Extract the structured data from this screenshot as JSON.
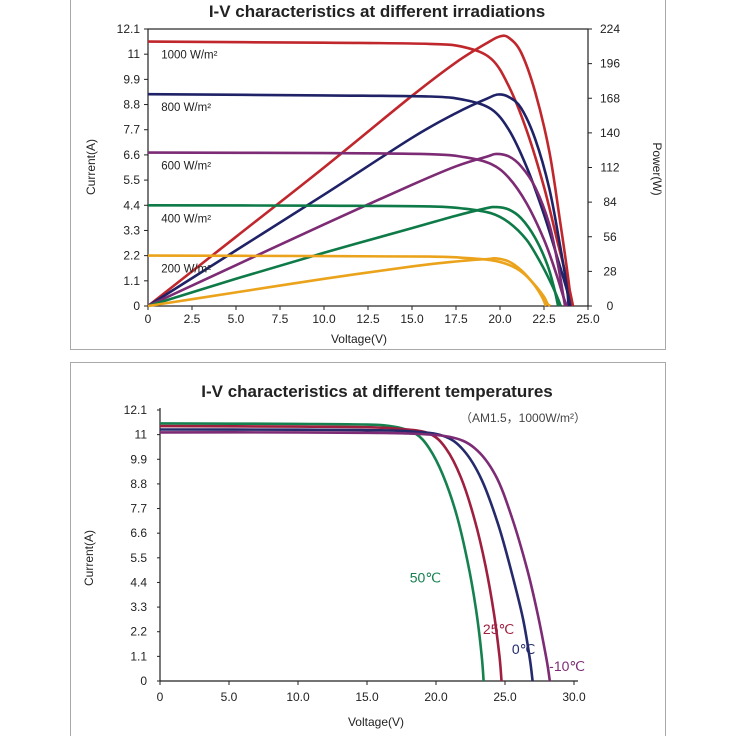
{
  "chart_data": [
    {
      "type": "line",
      "title": "I-V characteristics at different irradiations",
      "xlabel": "Voltage(V)",
      "ylabel": "Current(A)",
      "y2label": "Power(W)",
      "xlim": [
        0,
        25
      ],
      "ylim": [
        0,
        12.1
      ],
      "y2lim": [
        0,
        224
      ],
      "x_ticks": [
        "0",
        "2.5",
        "5.0",
        "7.5",
        "10.0",
        "12.5",
        "15.0",
        "17.5",
        "20.0",
        "22.5",
        "25.0"
      ],
      "y_ticks": [
        "0",
        "1.1",
        "2.2",
        "3.3",
        "4.4",
        "5.5",
        "6.6",
        "7.7",
        "8.8",
        "9.9",
        "11",
        "12.1"
      ],
      "y2_ticks": [
        "0",
        "28",
        "56",
        "84",
        "112",
        "140",
        "168",
        "196",
        "224"
      ],
      "grid": false,
      "series": [
        {
          "name": "1000 W/m²",
          "color": "#c0272d",
          "iv": [
            [
              0,
              11.55
            ],
            [
              10,
              11.5
            ],
            [
              16,
              11.45
            ],
            [
              18,
              11.3
            ],
            [
              19.5,
              10.8
            ],
            [
              20.5,
              9.6
            ],
            [
              21.5,
              7.7
            ],
            [
              22.5,
              5.2
            ],
            [
              23.3,
              2.7
            ],
            [
              23.9,
              0.9
            ],
            [
              24.15,
              0
            ]
          ],
          "pv": [
            [
              0,
              0
            ],
            [
              5,
              56
            ],
            [
              10,
              112
            ],
            [
              15,
              170
            ],
            [
              17.5,
              197
            ],
            [
              19.3,
              213
            ],
            [
              20,
              218
            ],
            [
              20.5,
              217
            ],
            [
              21.2,
              205
            ],
            [
              22,
              173
            ],
            [
              22.8,
              125
            ],
            [
              23.4,
              70
            ],
            [
              23.9,
              20
            ],
            [
              24.05,
              0
            ]
          ]
        },
        {
          "name": "800 W/m²",
          "color": "#1f2266",
          "iv": [
            [
              0,
              9.25
            ],
            [
              10,
              9.2
            ],
            [
              16,
              9.15
            ],
            [
              18,
              9.0
            ],
            [
              19.5,
              8.6
            ],
            [
              20.5,
              7.7
            ],
            [
              21.5,
              6.1
            ],
            [
              22.5,
              4.0
            ],
            [
              23.3,
              2.0
            ],
            [
              23.8,
              0.7
            ],
            [
              24.0,
              0
            ]
          ],
          "pv": [
            [
              0,
              0
            ],
            [
              5,
              45
            ],
            [
              10,
              90
            ],
            [
              15,
              136
            ],
            [
              17.5,
              156
            ],
            [
              19.3,
              168
            ],
            [
              19.9,
              171
            ],
            [
              20.5,
              169
            ],
            [
              21.2,
              160
            ],
            [
              22,
              135
            ],
            [
              22.8,
              95
            ],
            [
              23.4,
              50
            ],
            [
              23.8,
              15
            ],
            [
              23.9,
              0
            ]
          ]
        },
        {
          "name": "600 W/m²",
          "color": "#7c2b74",
          "iv": [
            [
              0,
              6.7
            ],
            [
              10,
              6.68
            ],
            [
              16,
              6.63
            ],
            [
              18,
              6.5
            ],
            [
              19.5,
              6.2
            ],
            [
              20.5,
              5.6
            ],
            [
              21.5,
              4.5
            ],
            [
              22.5,
              2.9
            ],
            [
              23.2,
              1.4
            ],
            [
              23.6,
              0.4
            ],
            [
              23.8,
              0
            ]
          ],
          "pv": [
            [
              0,
              0
            ],
            [
              5,
              33
            ],
            [
              10,
              66
            ],
            [
              15,
              98
            ],
            [
              17.5,
              113
            ],
            [
              19.3,
              121
            ],
            [
              19.8,
              123
            ],
            [
              20.5,
              121
            ],
            [
              21.2,
              113
            ],
            [
              22,
              96
            ],
            [
              22.8,
              66
            ],
            [
              23.3,
              33
            ],
            [
              23.6,
              8
            ],
            [
              23.7,
              0
            ]
          ]
        },
        {
          "name": "400 W/m²",
          "color": "#0d7a47",
          "iv": [
            [
              0,
              4.4
            ],
            [
              10,
              4.38
            ],
            [
              16,
              4.35
            ],
            [
              18,
              4.25
            ],
            [
              19.5,
              4.05
            ],
            [
              20.5,
              3.65
            ],
            [
              21.5,
              2.9
            ],
            [
              22.3,
              1.9
            ],
            [
              22.9,
              1.0
            ],
            [
              23.3,
              0.3
            ],
            [
              23.45,
              0
            ]
          ],
          "pv": [
            [
              0,
              0
            ],
            [
              5,
              22
            ],
            [
              10,
              43
            ],
            [
              15,
              63
            ],
            [
              17.5,
              73
            ],
            [
              19.2,
              79
            ],
            [
              19.8,
              80
            ],
            [
              20.5,
              78
            ],
            [
              21.2,
              71
            ],
            [
              22,
              55
            ],
            [
              22.7,
              33
            ],
            [
              23.1,
              13
            ],
            [
              23.3,
              0
            ]
          ]
        },
        {
          "name": "200 W/m²",
          "color": "#eba31c",
          "iv": [
            [
              0,
              2.2
            ],
            [
              10,
              2.18
            ],
            [
              16,
              2.16
            ],
            [
              18,
              2.1
            ],
            [
              19.5,
              2.0
            ],
            [
              20.5,
              1.8
            ],
            [
              21.3,
              1.45
            ],
            [
              22.0,
              0.9
            ],
            [
              22.5,
              0.4
            ],
            [
              22.7,
              0.1
            ],
            [
              22.85,
              0
            ]
          ],
          "pv": [
            [
              0,
              0
            ],
            [
              5,
              11
            ],
            [
              10,
              22
            ],
            [
              15,
              32
            ],
            [
              17.5,
              36
            ],
            [
              19.3,
              38
            ],
            [
              19.8,
              38.5
            ],
            [
              20.5,
              36
            ],
            [
              21.2,
              29
            ],
            [
              21.9,
              18
            ],
            [
              22.4,
              7
            ],
            [
              22.6,
              0
            ]
          ]
        }
      ]
    },
    {
      "type": "line",
      "title": "I-V characteristics at different temperatures",
      "annotation": "（AM1.5，1000W/m²）",
      "xlabel": "Voltage(V)",
      "ylabel": "Current(A)",
      "xlim": [
        0,
        30
      ],
      "ylim": [
        0,
        12.1
      ],
      "x_ticks": [
        "0",
        "5.0",
        "10.0",
        "15.0",
        "20.0",
        "25.0",
        "30.0"
      ],
      "y_ticks": [
        "0",
        "1.1",
        "2.2",
        "3.3",
        "4.4",
        "5.5",
        "6.6",
        "7.7",
        "8.8",
        "9.9",
        "11",
        "12.1"
      ],
      "grid": false,
      "series": [
        {
          "name": "50℃",
          "color": "#14814f",
          "points": [
            [
              0,
              11.5
            ],
            [
              10,
              11.48
            ],
            [
              15,
              11.45
            ],
            [
              17,
              11.35
            ],
            [
              18.5,
              11.05
            ],
            [
              19.5,
              10.4
            ],
            [
              20.5,
              9.2
            ],
            [
              21.5,
              7.4
            ],
            [
              22.3,
              5.3
            ],
            [
              22.9,
              3.2
            ],
            [
              23.3,
              1.2
            ],
            [
              23.45,
              0
            ]
          ]
        },
        {
          "name": "25℃",
          "color": "#9e1f3e",
          "points": [
            [
              0,
              11.38
            ],
            [
              10,
              11.36
            ],
            [
              15,
              11.33
            ],
            [
              17.5,
              11.25
            ],
            [
              19.5,
              11.05
            ],
            [
              20.7,
              10.4
            ],
            [
              21.8,
              9.1
            ],
            [
              22.8,
              7.2
            ],
            [
              23.6,
              5.1
            ],
            [
              24.2,
              3.0
            ],
            [
              24.6,
              1.1
            ],
            [
              24.75,
              0
            ]
          ]
        },
        {
          "name": "0℃",
          "color": "#252a6b",
          "points": [
            [
              0,
              11.23
            ],
            [
              10,
              11.22
            ],
            [
              15,
              11.2
            ],
            [
              18,
              11.15
            ],
            [
              20.5,
              10.95
            ],
            [
              22,
              10.3
            ],
            [
              23.3,
              9.0
            ],
            [
              24.5,
              7.0
            ],
            [
              25.5,
              4.8
            ],
            [
              26.3,
              2.8
            ],
            [
              26.8,
              1.0
            ],
            [
              27.0,
              0
            ]
          ]
        },
        {
          "name": "-10℃",
          "color": "#7c2b74",
          "points": [
            [
              0,
              11.1
            ],
            [
              10,
              11.1
            ],
            [
              15,
              11.08
            ],
            [
              18,
              11.05
            ],
            [
              21,
              10.9
            ],
            [
              22.8,
              10.4
            ],
            [
              24.3,
              9.2
            ],
            [
              25.5,
              7.3
            ],
            [
              26.6,
              5.0
            ],
            [
              27.4,
              2.9
            ],
            [
              28.0,
              1.0
            ],
            [
              28.25,
              0
            ]
          ]
        }
      ]
    }
  ]
}
